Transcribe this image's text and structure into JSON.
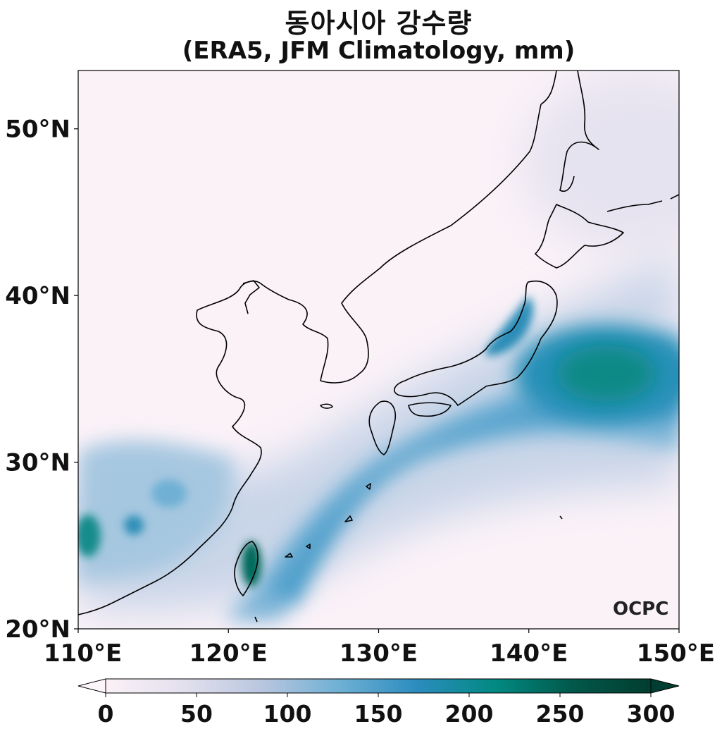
{
  "title": {
    "line1": "동아시아 강수량",
    "line2": "(ERA5, JFM Climatology, mm)"
  },
  "map": {
    "lon_range": [
      110,
      150
    ],
    "lat_range": [
      20,
      53.5
    ],
    "lat_ticks": [
      {
        "value": 20,
        "label": "20°N"
      },
      {
        "value": 30,
        "label": "30°N"
      },
      {
        "value": 40,
        "label": "40°N"
      },
      {
        "value": 50,
        "label": "50°N"
      }
    ],
    "lon_ticks": [
      {
        "value": 110,
        "label": "110°E"
      },
      {
        "value": 120,
        "label": "120°E"
      },
      {
        "value": 130,
        "label": "130°E"
      },
      {
        "value": 140,
        "label": "140°E"
      },
      {
        "value": 150,
        "label": "150°E"
      }
    ],
    "field": "precipitation",
    "units": "mm"
  },
  "colorbar": {
    "min": 0,
    "max": 300,
    "extend": "both",
    "ticks": [
      {
        "value": 0,
        "label": "0"
      },
      {
        "value": 50,
        "label": "50"
      },
      {
        "value": 100,
        "label": "100"
      },
      {
        "value": 150,
        "label": "150"
      },
      {
        "value": 200,
        "label": "200"
      },
      {
        "value": 250,
        "label": "250"
      },
      {
        "value": 300,
        "label": "300"
      }
    ],
    "colors": [
      "#fbf1f7",
      "#e3e0ee",
      "#b9c6df",
      "#6fb0d4",
      "#2b8cbe",
      "#028a82",
      "#02584a",
      "#013d30"
    ]
  },
  "logo": {
    "text": "OCPC"
  }
}
